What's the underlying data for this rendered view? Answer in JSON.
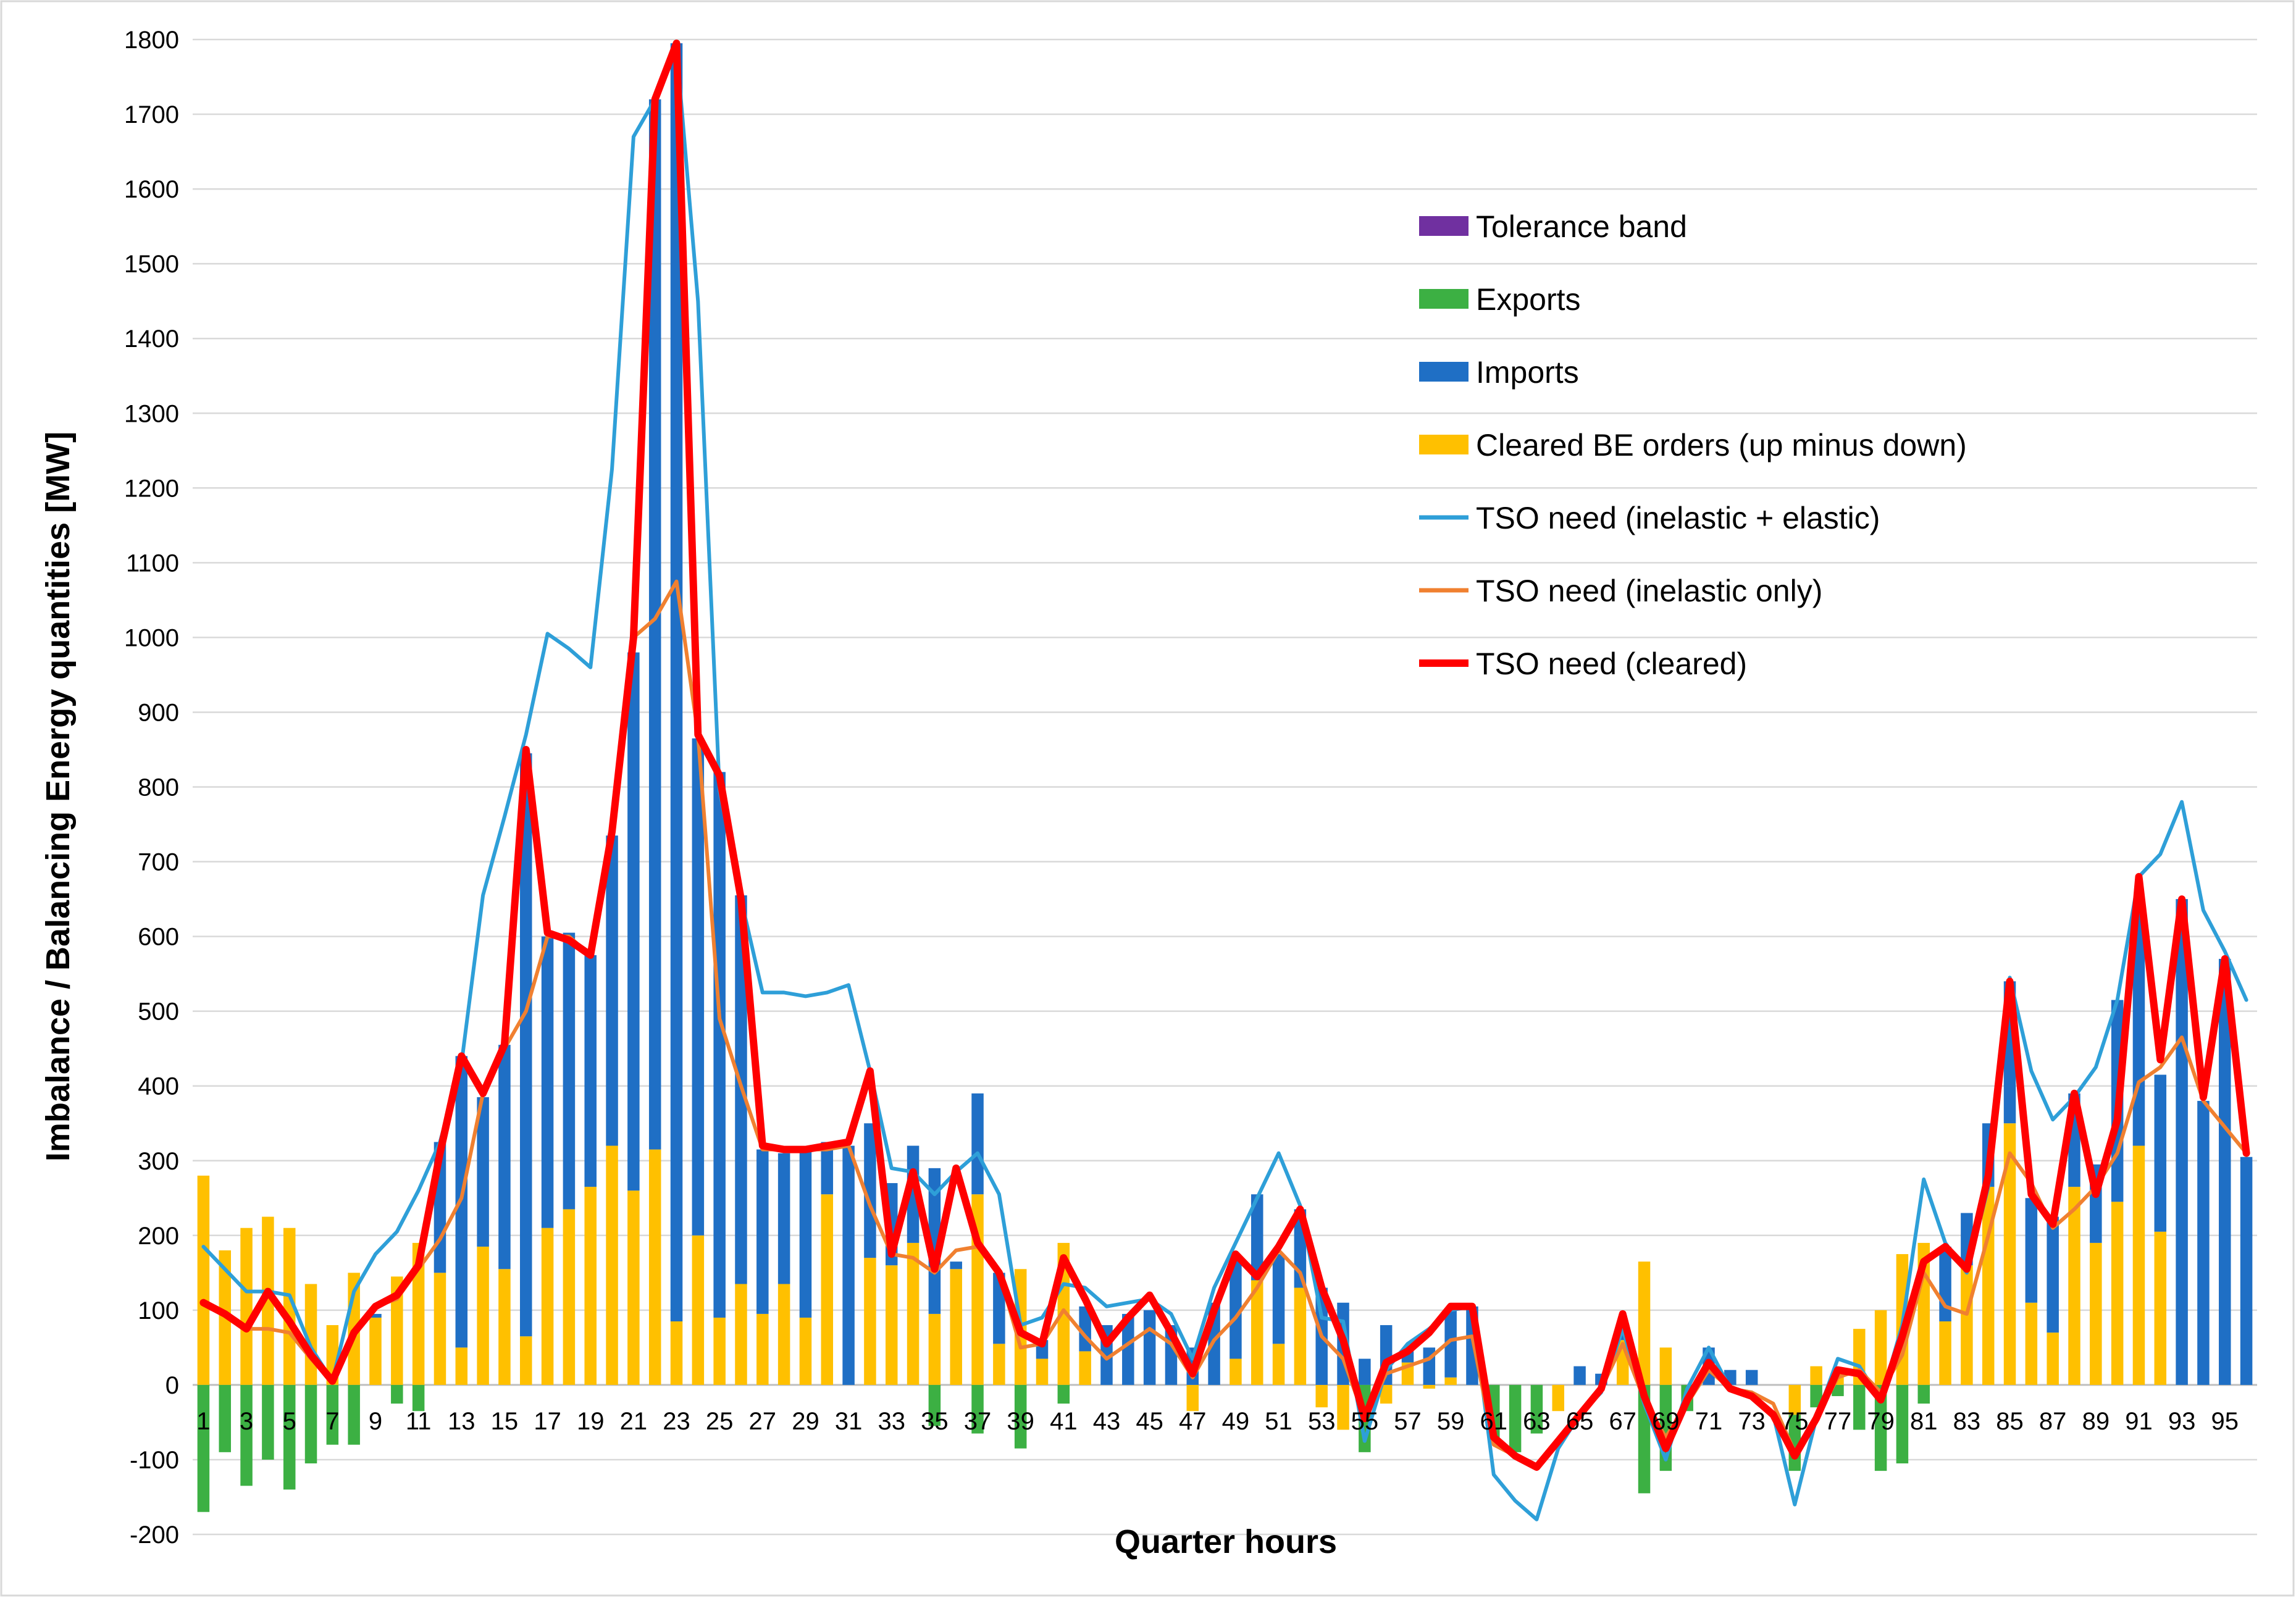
{
  "chart_data": {
    "type": "bar",
    "title": "",
    "xlabel": "Quarter hours",
    "ylabel": "Imbalance / Balancing Energy quantities [MW]",
    "ylim": [
      -200,
      1800
    ],
    "y_ticks": [
      -200,
      -100,
      0,
      100,
      200,
      300,
      400,
      500,
      600,
      700,
      800,
      900,
      1000,
      1100,
      1200,
      1300,
      1400,
      1500,
      1600,
      1700,
      1800
    ],
    "x": [
      1,
      2,
      3,
      4,
      5,
      6,
      7,
      8,
      9,
      10,
      11,
      12,
      13,
      14,
      15,
      16,
      17,
      18,
      19,
      20,
      21,
      22,
      23,
      24,
      25,
      26,
      27,
      28,
      29,
      30,
      31,
      32,
      33,
      34,
      35,
      36,
      37,
      38,
      39,
      40,
      41,
      42,
      43,
      44,
      45,
      46,
      47,
      48,
      49,
      50,
      51,
      52,
      53,
      54,
      55,
      56,
      57,
      58,
      59,
      60,
      61,
      62,
      63,
      64,
      65,
      66,
      67,
      68,
      69,
      70,
      71,
      72,
      73,
      74,
      75,
      76,
      77,
      78,
      79,
      80,
      81,
      82,
      83,
      84,
      85,
      86,
      87,
      88,
      89,
      90,
      91,
      92,
      93,
      94,
      95,
      96
    ],
    "x_tick_labels": [
      1,
      3,
      5,
      7,
      9,
      11,
      13,
      15,
      17,
      19,
      21,
      23,
      25,
      27,
      29,
      31,
      33,
      35,
      37,
      39,
      41,
      43,
      45,
      47,
      49,
      51,
      53,
      55,
      57,
      59,
      61,
      63,
      65,
      67,
      69,
      71,
      73,
      75,
      77,
      79,
      81,
      83,
      85,
      87,
      89,
      91,
      93,
      95
    ],
    "grid": true,
    "legend_position": "top-right",
    "series": [
      {
        "name": "Tolerance band",
        "kind": "bar",
        "color": "#7030a0",
        "values": [
          0,
          0,
          0,
          0,
          0,
          0,
          0,
          0,
          0,
          0,
          0,
          0,
          0,
          0,
          0,
          0,
          0,
          0,
          0,
          0,
          0,
          0,
          0,
          0,
          0,
          0,
          0,
          0,
          0,
          0,
          0,
          0,
          0,
          0,
          0,
          0,
          0,
          0,
          0,
          0,
          0,
          0,
          0,
          0,
          0,
          0,
          0,
          0,
          0,
          0,
          0,
          0,
          0,
          0,
          0,
          0,
          0,
          0,
          0,
          0,
          0,
          0,
          0,
          0,
          0,
          0,
          0,
          0,
          0,
          0,
          0,
          0,
          0,
          0,
          0,
          0,
          0,
          0,
          0,
          0,
          0,
          0,
          0,
          0,
          0,
          0,
          0,
          0,
          0,
          0,
          0,
          0,
          0,
          0,
          0,
          0
        ]
      },
      {
        "name": "Exports",
        "kind": "bar",
        "color": "#3cb043",
        "values": [
          -170,
          -90,
          -135,
          -100,
          -140,
          -105,
          -80,
          -80,
          0,
          -25,
          -35,
          0,
          0,
          0,
          0,
          0,
          0,
          0,
          0,
          0,
          0,
          0,
          0,
          0,
          0,
          0,
          0,
          0,
          0,
          0,
          0,
          0,
          0,
          0,
          -55,
          0,
          -65,
          0,
          -85,
          0,
          -25,
          0,
          0,
          0,
          0,
          0,
          0,
          0,
          0,
          0,
          0,
          0,
          0,
          0,
          -90,
          0,
          0,
          0,
          0,
          0,
          -75,
          -90,
          -65,
          0,
          0,
          0,
          0,
          -145,
          -115,
          -35,
          0,
          0,
          0,
          0,
          -75,
          -30,
          -15,
          -60,
          -115,
          -105,
          -25,
          0,
          0,
          0,
          0,
          0,
          0,
          0,
          0,
          0,
          0,
          0,
          0,
          0,
          0,
          0
        ]
      },
      {
        "name": "Imports",
        "kind": "bar",
        "color": "#1f6fc5",
        "values": [
          0,
          0,
          0,
          0,
          0,
          0,
          0,
          0,
          5,
          0,
          0,
          175,
          390,
          200,
          300,
          780,
          390,
          370,
          310,
          415,
          720,
          1405,
          1710,
          665,
          730,
          520,
          220,
          175,
          225,
          70,
          320,
          180,
          110,
          130,
          195,
          10,
          135,
          95,
          0,
          25,
          0,
          60,
          80,
          95,
          100,
          80,
          50,
          110,
          135,
          115,
          120,
          105,
          130,
          110,
          35,
          80,
          15,
          50,
          90,
          105,
          0,
          0,
          0,
          0,
          25,
          15,
          20,
          0,
          0,
          0,
          50,
          20,
          20,
          0,
          0,
          0,
          0,
          0,
          0,
          0,
          0,
          100,
          70,
          85,
          190,
          140,
          155,
          125,
          105,
          270,
          320,
          210,
          650,
          380,
          570,
          305
        ]
      },
      {
        "name": "Cleared BE orders (up minus down)",
        "kind": "bar",
        "color": "#ffc000",
        "values": [
          280,
          180,
          210,
          225,
          210,
          135,
          80,
          150,
          90,
          145,
          190,
          150,
          50,
          185,
          155,
          65,
          210,
          235,
          265,
          320,
          260,
          315,
          85,
          200,
          90,
          135,
          95,
          135,
          90,
          255,
          0,
          170,
          160,
          190,
          95,
          155,
          255,
          55,
          155,
          35,
          190,
          45,
          0,
          0,
          0,
          0,
          -35,
          0,
          35,
          140,
          55,
          130,
          -30,
          -60,
          0,
          -25,
          30,
          -5,
          10,
          0,
          0,
          0,
          0,
          -35,
          0,
          0,
          60,
          165,
          50,
          0,
          0,
          0,
          0,
          0,
          -40,
          25,
          20,
          75,
          100,
          175,
          190,
          85,
          160,
          265,
          350,
          110,
          70,
          265,
          190,
          245,
          320,
          205,
          0,
          0,
          0,
          0
        ]
      },
      {
        "name": "TSO need (inelastic + elastic)",
        "kind": "line",
        "color": "#2e9fd8",
        "values": [
          185,
          155,
          125,
          125,
          120,
          50,
          5,
          125,
          175,
          205,
          260,
          325,
          430,
          655,
          760,
          870,
          1005,
          985,
          960,
          1225,
          1670,
          1720,
          1790,
          1450,
          795,
          650,
          525,
          525,
          520,
          525,
          535,
          420,
          290,
          285,
          255,
          285,
          310,
          255,
          80,
          90,
          135,
          130,
          105,
          110,
          115,
          95,
          35,
          130,
          190,
          250,
          310,
          240,
          90,
          85,
          -75,
          20,
          55,
          75,
          100,
          105,
          -120,
          -155,
          -180,
          -85,
          -40,
          -10,
          75,
          -25,
          -100,
          -5,
          50,
          -5,
          -10,
          -40,
          -160,
          -45,
          35,
          25,
          -20,
          80,
          275,
          190,
          150,
          265,
          545,
          420,
          355,
          385,
          425,
          515,
          680,
          710,
          780,
          635,
          580,
          515
        ]
      },
      {
        "name": "TSO need (inelastic only)",
        "kind": "line",
        "color": "#f08030",
        "values": [
          110,
          95,
          75,
          75,
          70,
          35,
          5,
          70,
          105,
          115,
          155,
          195,
          250,
          390,
          450,
          500,
          600,
          600,
          575,
          740,
          1000,
          1025,
          1075,
          870,
          490,
          400,
          315,
          315,
          315,
          315,
          320,
          240,
          175,
          170,
          150,
          180,
          185,
          150,
          50,
          55,
          100,
          65,
          35,
          55,
          75,
          55,
          10,
          60,
          90,
          130,
          180,
          150,
          65,
          35,
          -45,
          15,
          25,
          35,
          60,
          65,
          -80,
          -95,
          -110,
          -75,
          -40,
          -5,
          55,
          -20,
          -70,
          -25,
          20,
          -5,
          -10,
          -25,
          -90,
          -45,
          10,
          20,
          -10,
          40,
          150,
          105,
          95,
          200,
          310,
          270,
          210,
          235,
          265,
          310,
          405,
          425,
          465,
          380,
          345,
          310
        ]
      },
      {
        "name": "TSO need (cleared)",
        "kind": "line",
        "color": "#ff0000",
        "values": [
          110,
          95,
          75,
          125,
          85,
          40,
          5,
          70,
          105,
          120,
          160,
          310,
          440,
          390,
          455,
          850,
          605,
          595,
          575,
          740,
          1000,
          1720,
          1795,
          870,
          815,
          650,
          320,
          315,
          315,
          320,
          325,
          420,
          175,
          285,
          155,
          290,
          190,
          150,
          70,
          55,
          170,
          115,
          55,
          90,
          120,
          70,
          15,
          100,
          175,
          145,
          185,
          235,
          130,
          60,
          -45,
          30,
          45,
          70,
          105,
          105,
          -70,
          -95,
          -110,
          -75,
          -40,
          -5,
          95,
          -15,
          -85,
          -20,
          30,
          -5,
          -15,
          -40,
          -95,
          -45,
          20,
          15,
          -20,
          65,
          165,
          185,
          155,
          280,
          540,
          255,
          215,
          390,
          255,
          355,
          680,
          435,
          650,
          385,
          570,
          310
        ]
      }
    ]
  }
}
